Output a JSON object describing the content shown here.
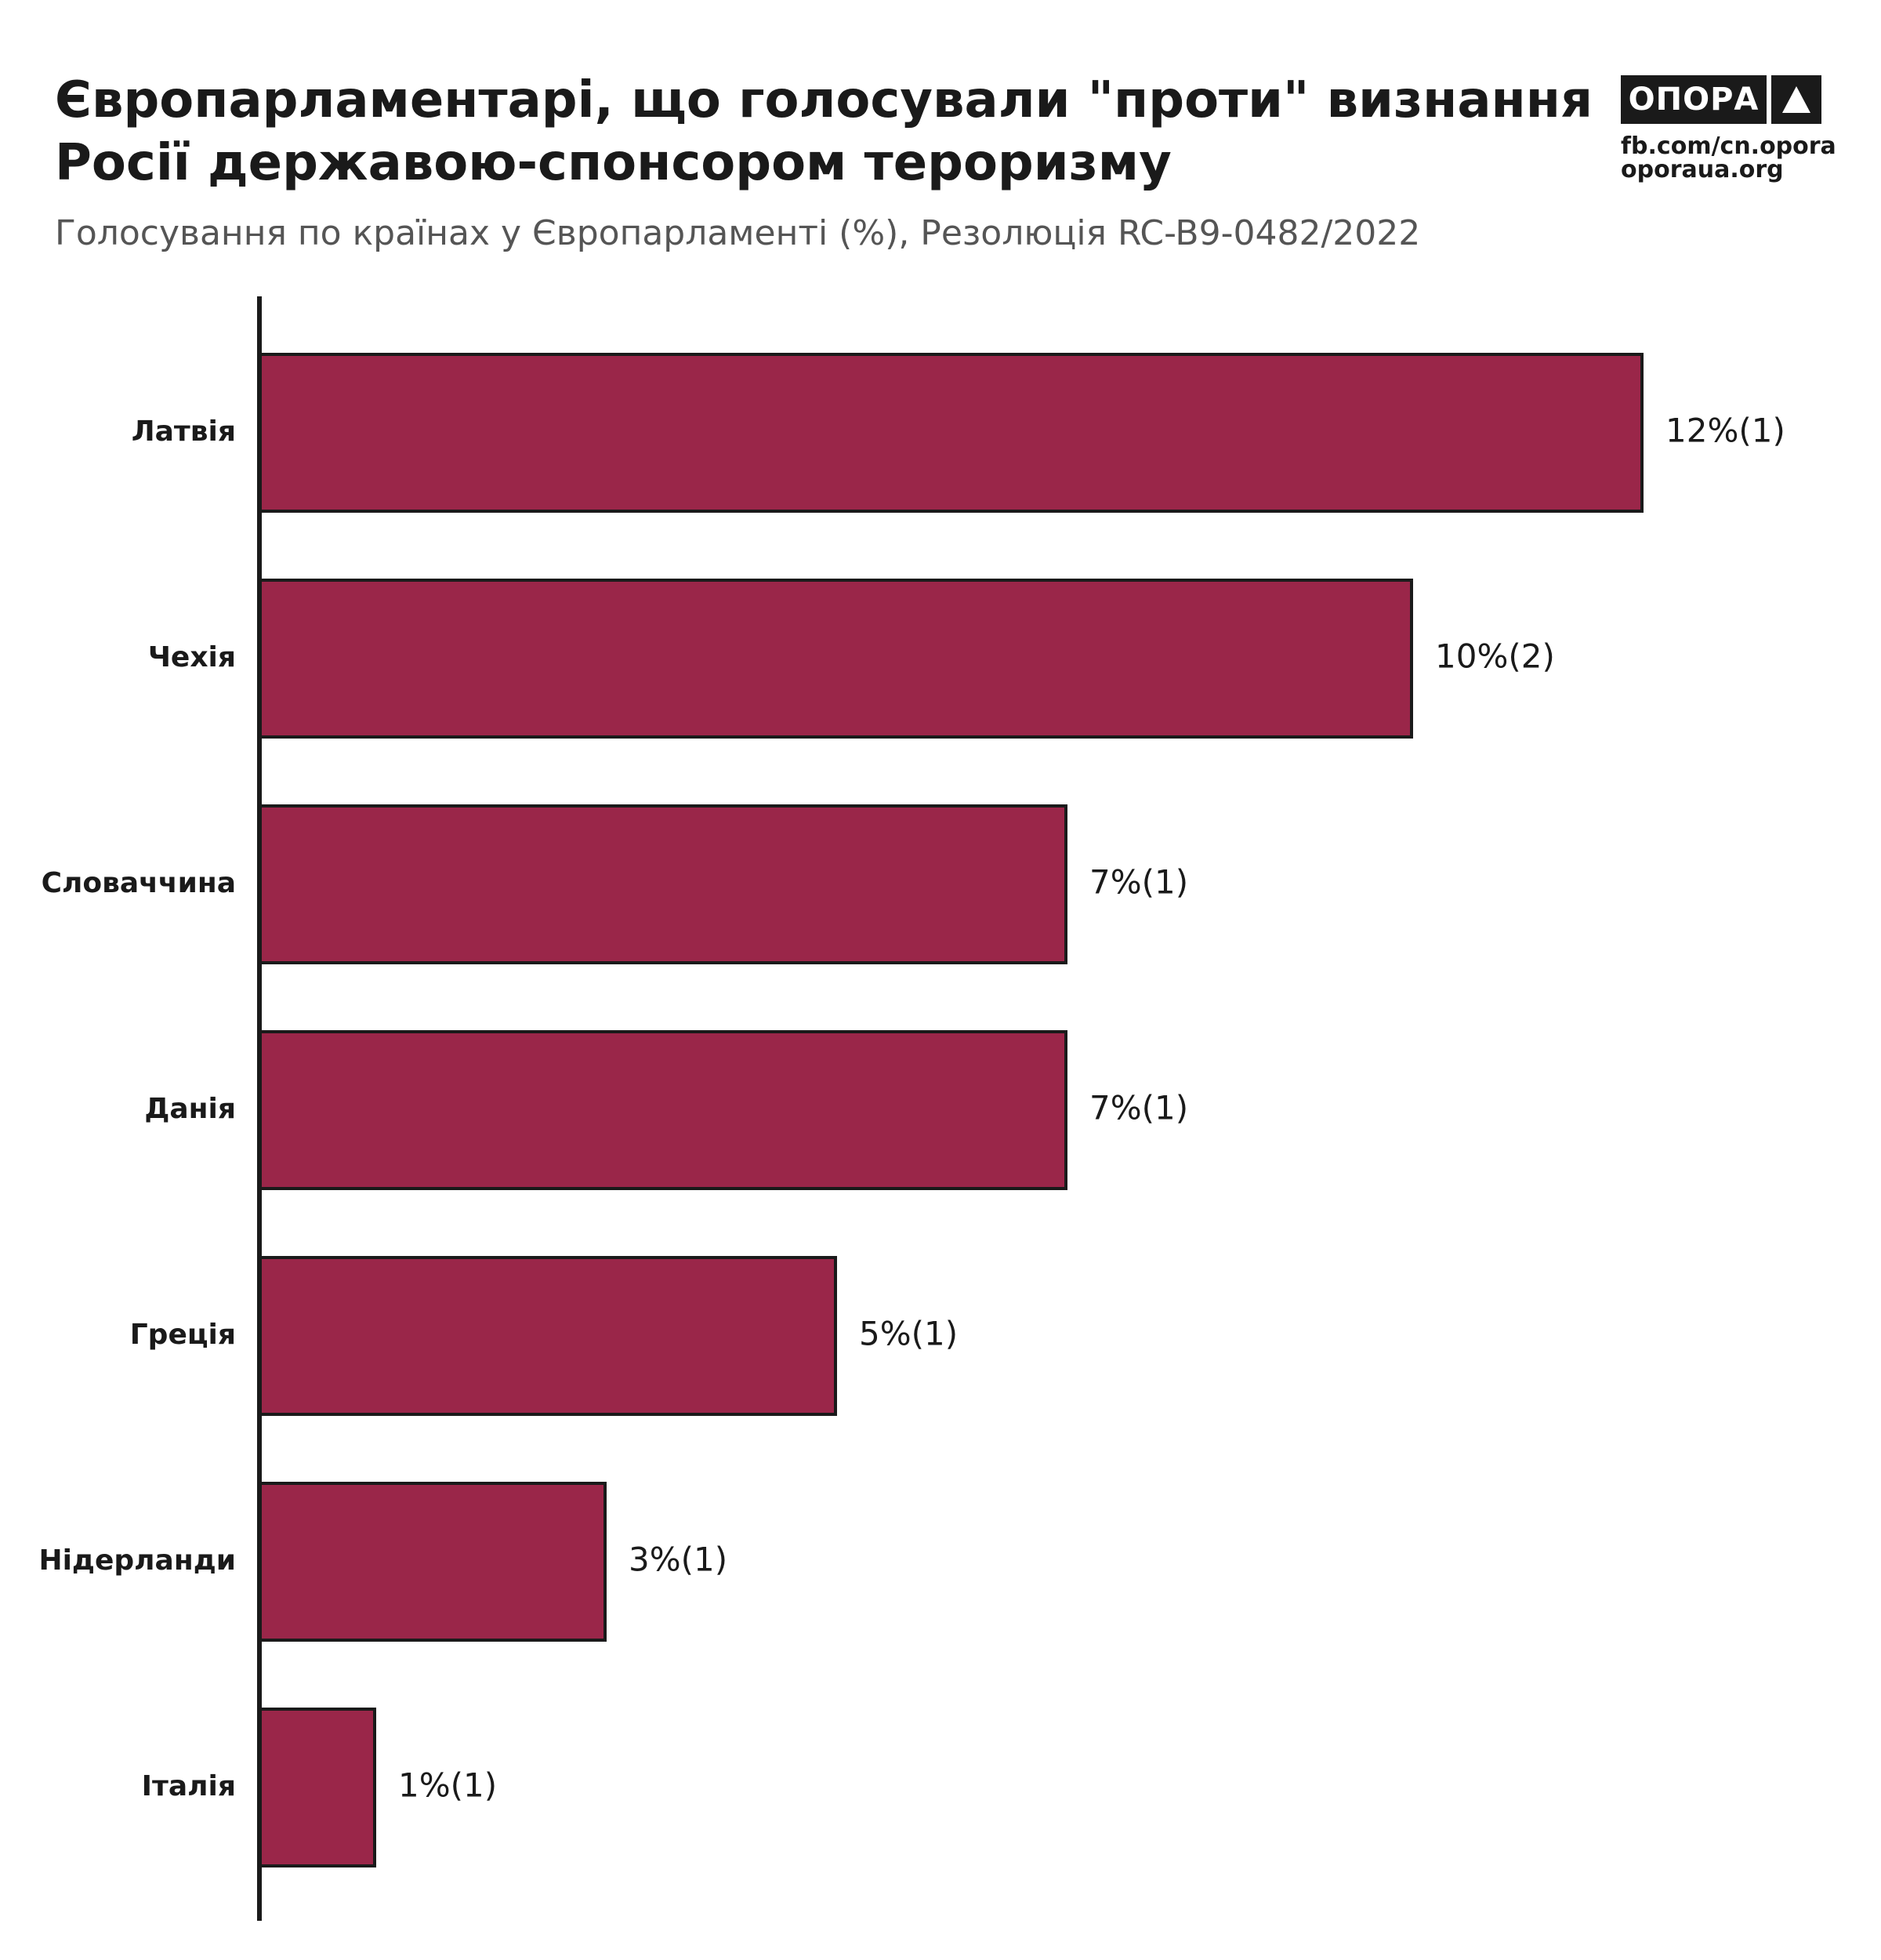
{
  "header": {
    "title": "Європарламентарі, що голосували \"проти\" визнання Росії державою-спонсором тероризму",
    "subtitle": "Голосування по країнах у Європарламенті (%), Резолюція RC-B9-0482/2022"
  },
  "logo": {
    "name": "ОПОРА",
    "line1": "fb.com/cn.opora",
    "line2": "oporaua.org"
  },
  "colors": {
    "bar": "#9a2649",
    "bar_stroke": "#1a1a1a",
    "axis": "#1a1a1a",
    "text": "#1a1a1a"
  },
  "chart_data": {
    "type": "bar",
    "orientation": "horizontal",
    "title": "Європарламентарі, що голосували \"проти\" визнання Росії державою-спонсором тероризму",
    "subtitle": "Голосування по країнах у Європарламенті (%), Резолюція RC-B9-0482/2022",
    "categories": [
      "Латвія",
      "Чехія",
      "Словаччина",
      "Данія",
      "Греція",
      "Нідерланди",
      "Італія"
    ],
    "values": [
      12,
      10,
      7,
      7,
      5,
      3,
      1
    ],
    "counts": [
      1,
      2,
      1,
      1,
      1,
      1,
      1
    ],
    "data_labels": [
      "12%(1)",
      "10%(2)",
      "7%(1)",
      "7%(1)",
      "5%(1)",
      "3%(1)",
      "1%(1)"
    ],
    "xlim": [
      0,
      12
    ],
    "grid": false,
    "legend": "none"
  }
}
